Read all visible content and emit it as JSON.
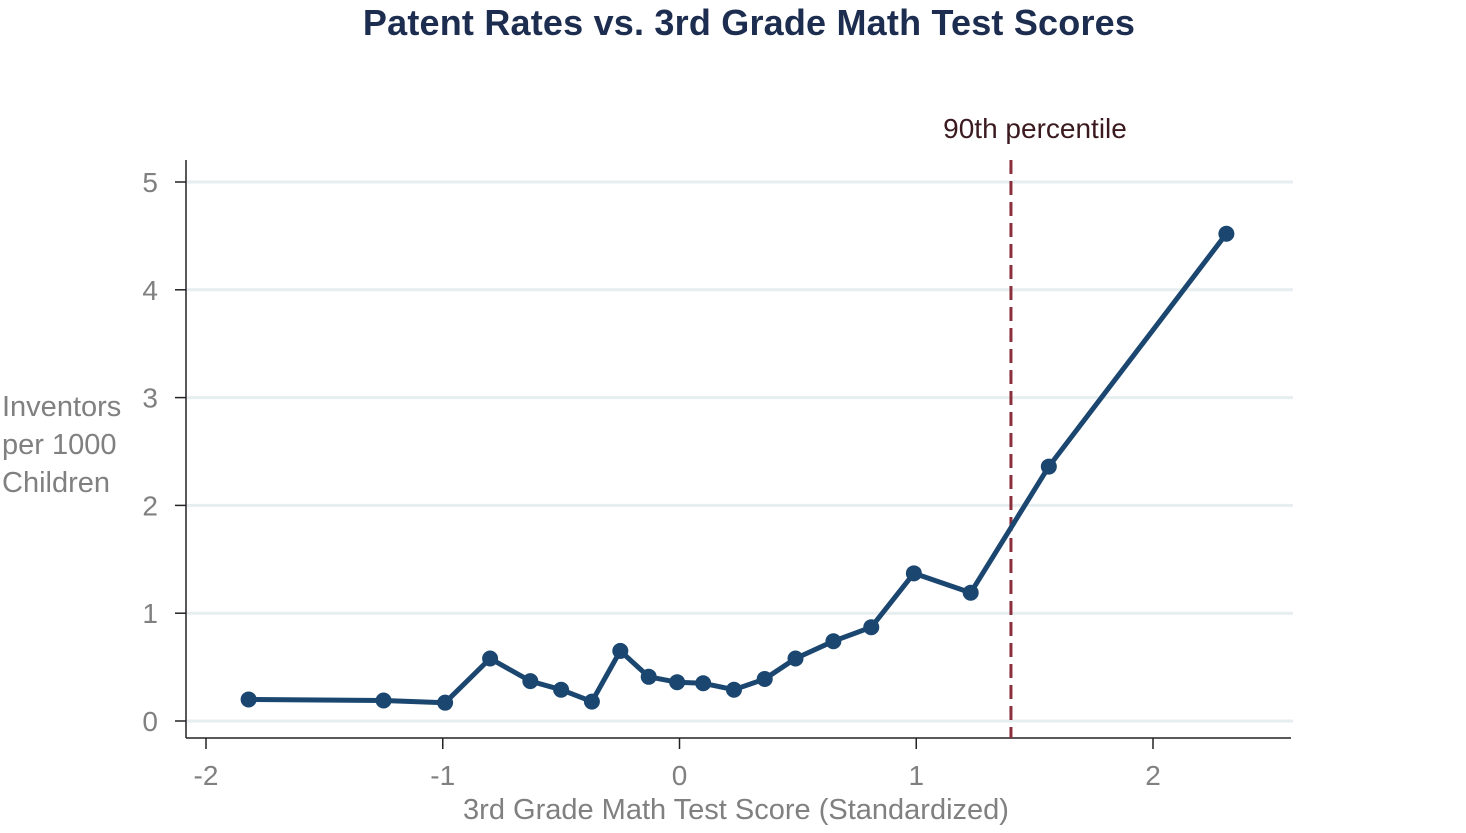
{
  "chart_data": {
    "type": "line",
    "title": "Patent Rates vs. 3rd Grade Math Test Scores",
    "xlabel": "3rd Grade Math Test Score (Standardized)",
    "ylabel_lines": [
      "Inventors",
      "per 1000",
      "Children"
    ],
    "xlim": [
      -2.1,
      2.6
    ],
    "ylim": [
      -0.16,
      5.2
    ],
    "xticks": [
      -2,
      -1,
      0,
      1,
      2
    ],
    "xtick_labels": [
      "-2",
      "-1",
      "0",
      "1",
      "2"
    ],
    "yticks": [
      0,
      1,
      2,
      3,
      4,
      5
    ],
    "ytick_labels": [
      "0",
      "1",
      "2",
      "3",
      "4",
      "5"
    ],
    "grid": "horizontal",
    "series": [
      {
        "name": "Inventors per 1000 Children",
        "color": "#1a4670",
        "x": [
          -1.82,
          -1.25,
          -0.99,
          -0.8,
          -0.63,
          -0.5,
          -0.37,
          -0.25,
          -0.13,
          -0.01,
          0.1,
          0.23,
          0.36,
          0.49,
          0.65,
          0.81,
          0.99,
          1.23,
          1.56,
          2.31
        ],
        "y": [
          0.2,
          0.19,
          0.17,
          0.58,
          0.37,
          0.29,
          0.18,
          0.65,
          0.41,
          0.36,
          0.35,
          0.29,
          0.39,
          0.58,
          0.74,
          0.87,
          1.37,
          1.19,
          2.36,
          4.52
        ]
      }
    ],
    "reference_line": {
      "x": 1.4,
      "label": "90th percentile",
      "color": "#8b2f3c",
      "style": "dashed"
    }
  },
  "colors": {
    "title": "#1c2d4f",
    "axis_text": "#808080",
    "grid": "#e6eef0",
    "axis": "#222222"
  }
}
